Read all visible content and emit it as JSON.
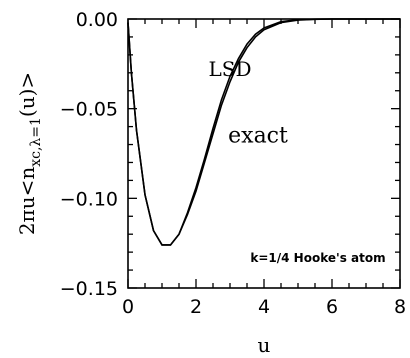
{
  "chart_data": {
    "type": "line",
    "xlabel": "u",
    "ylabel": "2πu<n",
    "ylabel_sub": "xc,λ=1",
    "ylabel_tail": "(u)>",
    "xlim": [
      0,
      8
    ],
    "ylim": [
      -0.15,
      0.0
    ],
    "x_ticks": [
      0,
      2,
      4,
      6,
      8
    ],
    "x_tick_labels": [
      "0",
      "2",
      "4",
      "6",
      "8"
    ],
    "y_ticks": [
      0.0,
      -0.05,
      -0.1,
      -0.15
    ],
    "y_tick_labels": [
      "0.00",
      "−0.05",
      "−0.10",
      "−0.15"
    ],
    "inset_label": "k=1/4 Hooke's atom",
    "grid": false,
    "series": [
      {
        "name": "LSD",
        "x": [
          0,
          0.1,
          0.25,
          0.5,
          0.75,
          1.0,
          1.25,
          1.5,
          1.75,
          2.0,
          2.25,
          2.5,
          2.75,
          3.0,
          3.25,
          3.5,
          3.75,
          4.0,
          4.5,
          5.0,
          5.5,
          6.0,
          6.5,
          7.0,
          7.5,
          8.0
        ],
        "values": [
          -0.002,
          -0.03,
          -0.062,
          -0.098,
          -0.118,
          -0.126,
          -0.126,
          -0.12,
          -0.108,
          -0.094,
          -0.078,
          -0.061,
          -0.045,
          -0.032,
          -0.022,
          -0.014,
          -0.0085,
          -0.005,
          -0.0015,
          -0.0004,
          -0.0001,
          0.0,
          0.0,
          0.0,
          0.0,
          0.0
        ]
      },
      {
        "name": "exact",
        "x": [
          0,
          0.1,
          0.25,
          0.5,
          0.75,
          1.0,
          1.25,
          1.5,
          1.75,
          2.0,
          2.25,
          2.5,
          2.75,
          3.0,
          3.25,
          3.5,
          3.75,
          4.0,
          4.5,
          5.0,
          5.5,
          6.0,
          6.5,
          7.0,
          7.5,
          8.0
        ],
        "values": [
          -0.002,
          -0.03,
          -0.062,
          -0.098,
          -0.118,
          -0.126,
          -0.126,
          -0.12,
          -0.109,
          -0.096,
          -0.08,
          -0.064,
          -0.048,
          -0.035,
          -0.024,
          -0.016,
          -0.01,
          -0.006,
          -0.002,
          -0.0006,
          -0.0002,
          0.0,
          0.0,
          0.0,
          0.0,
          0.0
        ]
      }
    ],
    "annotations": [
      {
        "text": "LSD",
        "x": 3.0,
        "y": -0.028
      },
      {
        "text": "exact",
        "x": 4.0,
        "y": -0.065
      }
    ]
  }
}
